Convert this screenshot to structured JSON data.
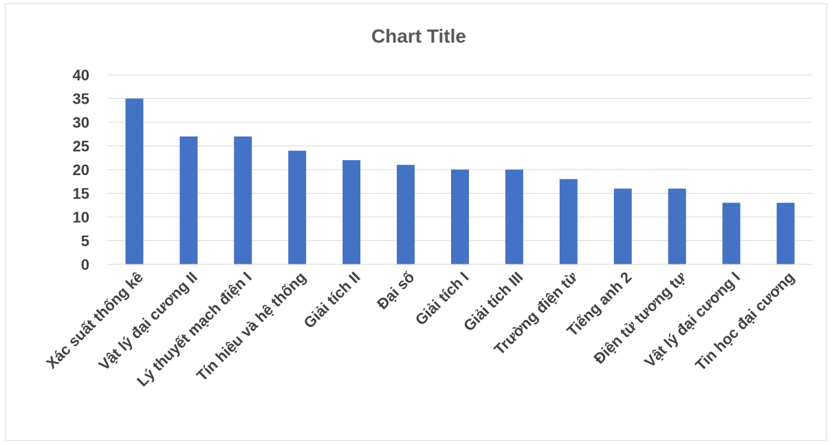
{
  "chart_data": {
    "type": "bar",
    "title": "Chart Title",
    "xlabel": "",
    "ylabel": "",
    "categories": [
      "Xác suất thống kê",
      "Vật lý đại cương II",
      "Lý thuyết mạch điện I",
      "Tín hiệu và hệ thống",
      "Giải tích II",
      "Đại số",
      "Giải tích I",
      "Giải tích III",
      "Trường điện từ",
      "Tiếng anh 2",
      "Điện tử tương tự",
      "Vật lý đại cương I",
      "Tin học đại cương"
    ],
    "values": [
      35,
      27,
      27,
      24,
      22,
      21,
      20,
      20,
      18,
      16,
      16,
      13,
      13
    ],
    "ylim": [
      0,
      40
    ],
    "yticks": [
      "0",
      "5",
      "10",
      "15",
      "20",
      "25",
      "30",
      "35",
      "40"
    ],
    "grid": true,
    "legend": "none",
    "bar_color": "#4472C4"
  }
}
